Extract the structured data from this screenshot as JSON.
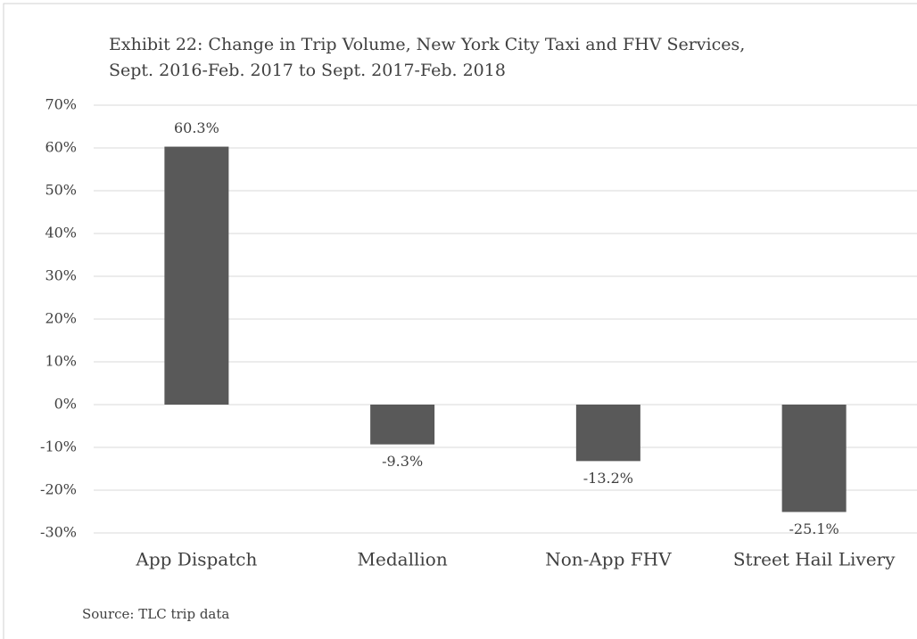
{
  "chart_data": {
    "type": "bar",
    "title": [
      "Exhibit 22: Change in Trip Volume, New York City Taxi and FHV Services,",
      "Sept. 2016-Feb. 2017 to Sept. 2017-Feb. 2018"
    ],
    "categories": [
      "App Dispatch",
      "Medallion",
      "Non-App FHV",
      "Street Hail Livery"
    ],
    "values": [
      60.3,
      -9.3,
      -13.2,
      -25.1
    ],
    "value_labels": [
      "60.3%",
      "-9.3%",
      "-13.2%",
      "-25.1%"
    ],
    "color": "#595959",
    "ylim": [
      -30,
      70
    ],
    "yticks": [
      {
        "value": -30,
        "label": "-30%"
      },
      {
        "value": -20,
        "label": "-20%"
      },
      {
        "value": -10,
        "label": "-10%"
      },
      {
        "value": 0,
        "label": "0%"
      },
      {
        "value": 10,
        "label": "10%"
      },
      {
        "value": 20,
        "label": "20%"
      },
      {
        "value": 30,
        "label": "30%"
      },
      {
        "value": 40,
        "label": "40%"
      },
      {
        "value": 50,
        "label": "50%"
      },
      {
        "value": 60,
        "label": "60%"
      },
      {
        "value": 70,
        "label": "70%"
      }
    ],
    "grid": true,
    "source": "Source: TLC trip data"
  }
}
